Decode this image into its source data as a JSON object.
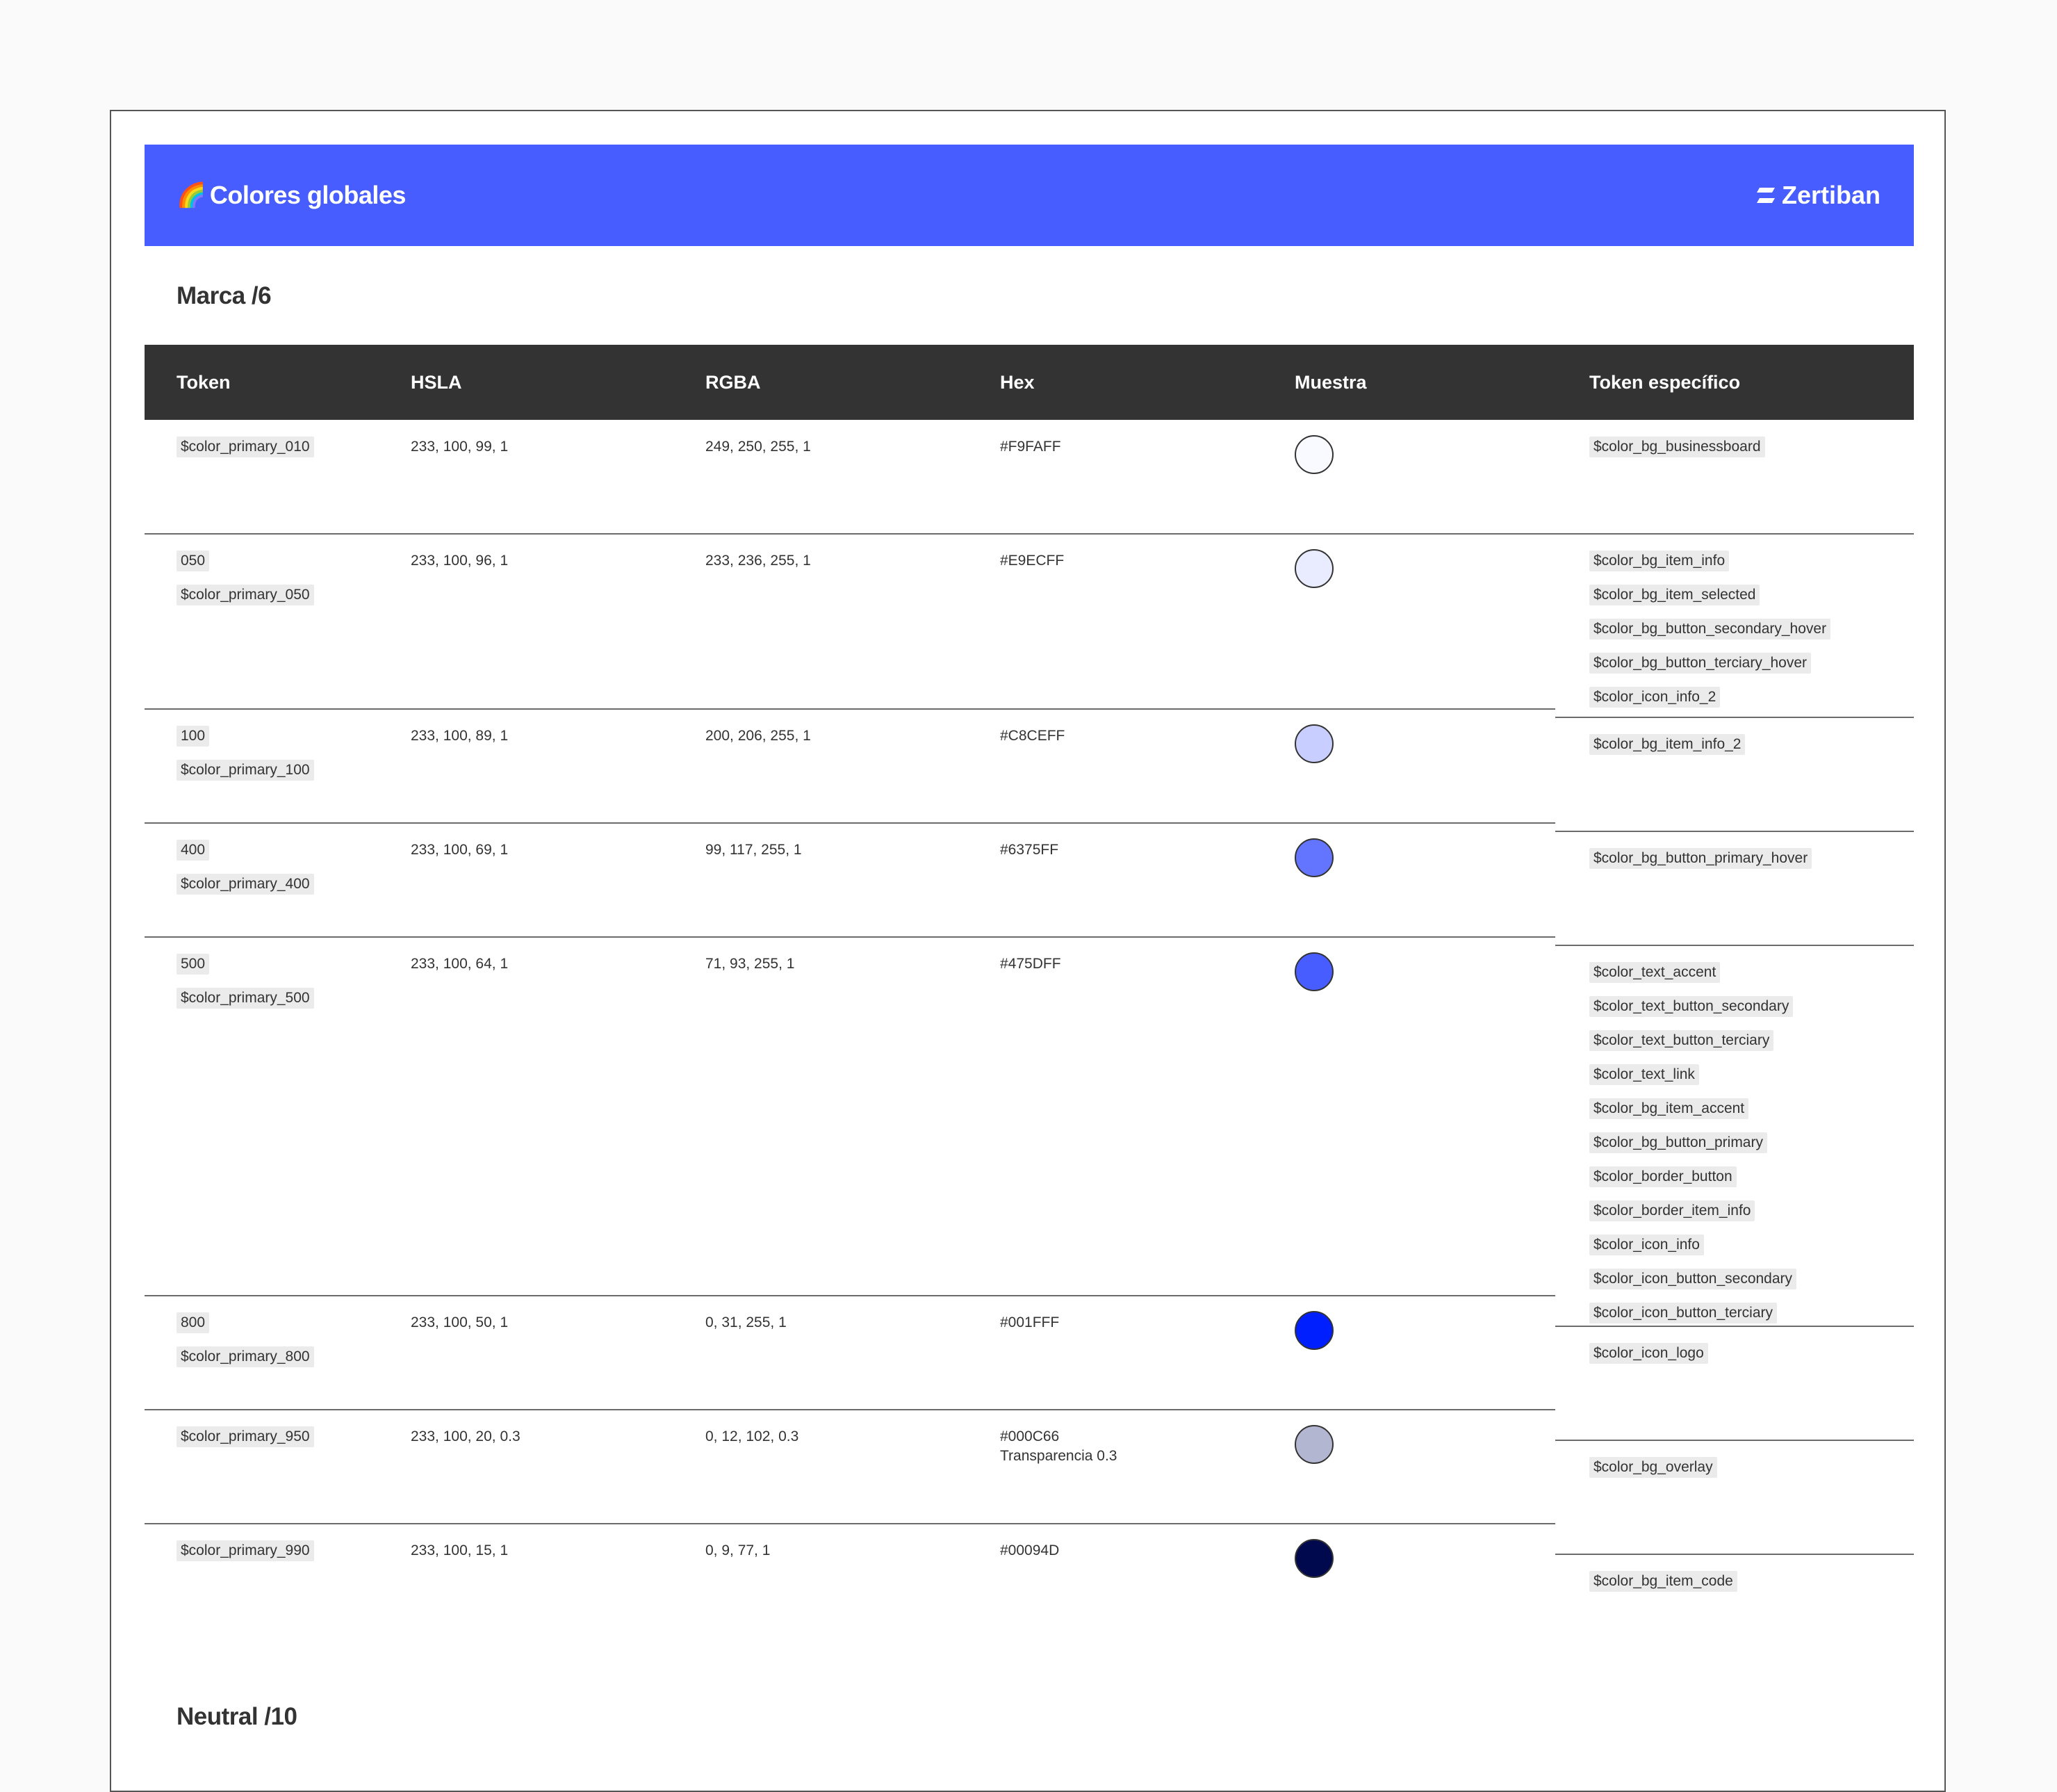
{
  "header": {
    "emoji": "🌈",
    "title": "Colores globales",
    "brand_icon": "zertiban-logo-icon",
    "brand_name": "Zertiban"
  },
  "section_brand": {
    "title": "Marca /6"
  },
  "table": {
    "columns": [
      "Token",
      "HSLA",
      "RGBA",
      "Hex",
      "Muestra",
      "Token específico"
    ]
  },
  "rows": [
    {
      "tokens": [
        "$color_primary_010"
      ],
      "hsla": "233, 100, 99, 1",
      "rgba": "249, 250, 255, 1",
      "hex": "#F9FAFF",
      "hex_note": "",
      "swatch": "#F9FAFF"
    },
    {
      "tokens": [
        "050",
        "$color_primary_050"
      ],
      "hsla": "233, 100, 96, 1",
      "rgba": "233, 236, 255, 1",
      "hex": "#E9ECFF",
      "hex_note": "",
      "swatch": "#E9ECFF"
    },
    {
      "tokens": [
        "100",
        "$color_primary_100"
      ],
      "hsla": "233, 100, 89, 1",
      "rgba": "200, 206, 255, 1",
      "hex": "#C8CEFF",
      "hex_note": "",
      "swatch": "#C8CEFF"
    },
    {
      "tokens": [
        "400",
        "$color_primary_400"
      ],
      "hsla": "233, 100, 69, 1",
      "rgba": "99, 117, 255, 1",
      "hex": "#6375FF",
      "hex_note": "",
      "swatch": "#6375FF"
    },
    {
      "tokens": [
        "500",
        "$color_primary_500"
      ],
      "hsla": "233, 100, 64, 1",
      "rgba": "71, 93, 255, 1",
      "hex": "#475DFF",
      "hex_note": "",
      "swatch": "#475DFF"
    },
    {
      "tokens": [
        "800",
        "$color_primary_800"
      ],
      "hsla": "233, 100, 50, 1",
      "rgba": "0, 31, 255, 1",
      "hex": "#001FFF",
      "hex_note": "",
      "swatch": "#001FFF"
    },
    {
      "tokens": [
        "$color_primary_950"
      ],
      "hsla": "233, 100, 20, 0.3",
      "rgba": "0, 12, 102, 0.3",
      "hex": "#000C66",
      "hex_note": "Transparencia 0.3",
      "swatch": "#B3B6D1"
    },
    {
      "tokens": [
        "$color_primary_990"
      ],
      "hsla": "233, 100, 15, 1",
      "rgba": "0, 9, 77, 1",
      "hex": "#00094D",
      "hex_note": "",
      "swatch": "#00094D"
    }
  ],
  "specific_groups": [
    [
      "$color_bg_businessboard"
    ],
    [
      "$color_bg_item_info",
      "$color_bg_item_selected",
      "$color_bg_button_secondary_hover",
      "$color_bg_button_terciary_hover",
      "$color_icon_info_2"
    ],
    [
      "$color_bg_item_info_2"
    ],
    [
      "$color_bg_button_primary_hover"
    ],
    [
      "$color_text_accent",
      "$color_text_button_secondary",
      "$color_text_button_terciary",
      "$color_text_link",
      "$color_bg_item_accent",
      "$color_bg_button_primary",
      "$color_border_button",
      "$color_border_item_info",
      "$color_icon_info",
      "$color_icon_button_secondary",
      "$color_icon_button_terciary"
    ],
    [
      "$color_icon_logo"
    ],
    [
      "$color_bg_overlay"
    ],
    [
      "$color_bg_item_code"
    ]
  ],
  "section_neutral": {
    "title": "Neutral /10"
  }
}
